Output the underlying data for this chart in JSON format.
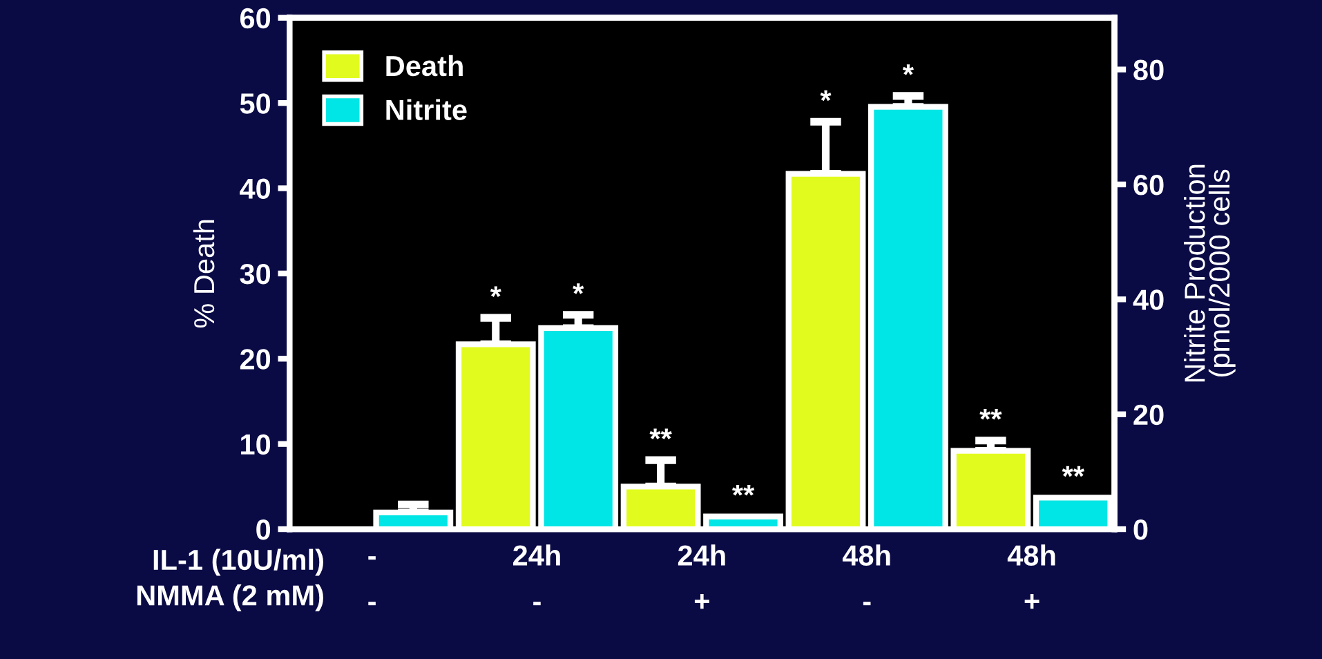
{
  "chart_data": {
    "type": "bar",
    "categories": [
      "-\n-",
      "24h\n-",
      "24h\n+",
      "48h\n-",
      "48h\n+"
    ],
    "series": [
      {
        "name": "Death",
        "color": "#e2fb1f",
        "values": [
          null,
          21.7,
          5.0,
          41.7,
          9.2
        ],
        "errors": [
          null,
          [
            21.7,
            24.8
          ],
          [
            5.0,
            8.1
          ],
          [
            41.7,
            47.8
          ],
          [
            9.2,
            10.4
          ]
        ],
        "value_labels": [
          null,
          "*",
          "**",
          "*",
          "**"
        ]
      },
      {
        "name": "Nitrite",
        "color": "#00e5e5",
        "axis": "y2",
        "values": [
          2.9,
          35,
          2.2,
          73.5,
          5.5
        ],
        "errors": [
          [
            2.9,
            4.3
          ],
          [
            35,
            37.3
          ],
          null,
          [
            73.5,
            75.4
          ],
          null
        ],
        "value_labels": [
          null,
          "*",
          "**",
          "*",
          "**"
        ]
      }
    ],
    "ylabel": "% Death",
    "y2label": "Nitrite Production\n(pmol/2000 cells",
    "ylim": [
      0,
      60
    ],
    "yticks": [
      0,
      10,
      20,
      30,
      40,
      50,
      60
    ],
    "y2lim": [
      0,
      89
    ],
    "y2ticks": [
      0,
      20,
      40,
      60,
      80
    ],
    "annotations": [
      "IL-1 (10U/ml)",
      "NMMA (2 mM)"
    ],
    "legend": "top left",
    "grid": false
  }
}
